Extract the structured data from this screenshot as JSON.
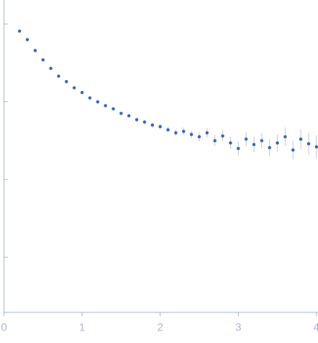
{
  "chart_data": {
    "type": "scatter",
    "x": [
      0.2,
      0.3,
      0.4,
      0.5,
      0.6,
      0.7,
      0.8,
      0.9,
      1.0,
      1.1,
      1.2,
      1.3,
      1.4,
      1.5,
      1.6,
      1.7,
      1.8,
      1.9,
      2.0,
      2.1,
      2.2,
      2.3,
      2.4,
      2.5,
      2.6,
      2.7,
      2.8,
      2.9,
      3.0,
      3.1,
      3.2,
      3.3,
      3.4,
      3.5,
      3.6,
      3.7,
      3.8,
      3.9,
      4.0
    ],
    "values": [
      3.91,
      3.8,
      3.66,
      3.54,
      3.43,
      3.33,
      3.26,
      3.18,
      3.12,
      3.05,
      3.0,
      2.95,
      2.91,
      2.85,
      2.82,
      2.77,
      2.74,
      2.7,
      2.68,
      2.64,
      2.6,
      2.62,
      2.58,
      2.55,
      2.6,
      2.5,
      2.56,
      2.47,
      2.4,
      2.52,
      2.45,
      2.5,
      2.41,
      2.47,
      2.55,
      2.38,
      2.52,
      2.46,
      2.42
    ],
    "errors": [
      0.01,
      0.01,
      0.01,
      0.01,
      0.01,
      0.01,
      0.01,
      0.01,
      0.015,
      0.015,
      0.015,
      0.02,
      0.02,
      0.02,
      0.02,
      0.025,
      0.025,
      0.03,
      0.03,
      0.04,
      0.04,
      0.05,
      0.05,
      0.06,
      0.06,
      0.07,
      0.07,
      0.08,
      0.09,
      0.09,
      0.1,
      0.1,
      0.11,
      0.11,
      0.12,
      0.12,
      0.13,
      0.14,
      0.15
    ],
    "color": "#3a65b5",
    "error_color": "#c3c9d6",
    "axis_color": "#aab8d6",
    "xlim": [
      0,
      4
    ],
    "xticks": [
      0,
      1,
      2,
      3,
      4
    ],
    "ylim": [
      0.29,
      4.31
    ],
    "yticks": [
      1,
      2,
      3,
      4
    ]
  }
}
